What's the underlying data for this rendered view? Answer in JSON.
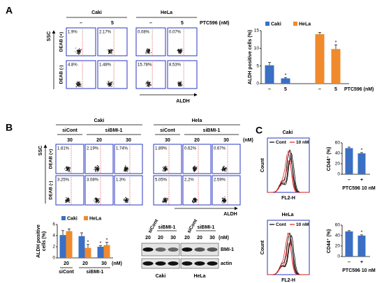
{
  "panel_a": {
    "letter": "A",
    "groups": [
      "Caki",
      "HeLa"
    ],
    "doses": [
      "–",
      "5",
      "–",
      "5"
    ],
    "treatment": "PTC596 (nM)",
    "rows": [
      "DEAB (+)",
      "DEAB (-)"
    ],
    "y_axis": "SSC",
    "x_axis": "ALDH",
    "percentages": [
      [
        "1.9%",
        "2.17%",
        "0.08%",
        "0.07%"
      ],
      [
        "4.8%",
        "1.48%",
        "15.78%",
        "8.53%"
      ]
    ],
    "bar": {
      "ylabel": "ALDH positive cells (%)",
      "series": [
        {
          "name": "Caki",
          "color": "#3a6fc4",
          "values": [
            5.2,
            1.5
          ],
          "errors": [
            0.8,
            0.2
          ]
        },
        {
          "name": "HeLa",
          "color": "#f08a2c",
          "values": [
            14,
            9.8
          ],
          "errors": [
            0.5,
            1.2
          ]
        }
      ],
      "ylim": [
        0,
        15
      ],
      "yticks": [
        0,
        5,
        10,
        15
      ],
      "x_labels": [
        "–",
        "5",
        "–",
        "5"
      ],
      "treatment": "PTC596 (nM)",
      "stars": [
        "*",
        "*"
      ]
    }
  },
  "panel_b": {
    "letter": "B",
    "groups": [
      "Caki",
      "Hela"
    ],
    "subgroups": [
      "siCont",
      "siBMI-1",
      "siCont",
      "siBMI-1"
    ],
    "doses": [
      "30",
      "20",
      "30",
      "30",
      "20",
      "30"
    ],
    "unit": "(nM)",
    "rows": [
      "DEAB (+)",
      "DEAB (-)"
    ],
    "y_axis": "SSC",
    "x_axis": "ALDH",
    "percentages": [
      [
        "1.81%",
        "2.19%",
        "1.74%",
        "1.89%",
        "0.62%",
        "0.67%"
      ],
      [
        "3.25%",
        "3.08%",
        "1.3%",
        "5.05%",
        "2.2%",
        "2.59%"
      ]
    ],
    "bar": {
      "ylabel": [
        "ALDH positive",
        "cells (%)"
      ],
      "series": [
        {
          "name": "Caki",
          "color": "#3a6fc4",
          "values": [
            4.1,
            3.9,
            2.0
          ],
          "errors": [
            0.8,
            0.6,
            0.2
          ]
        },
        {
          "name": "HeLa",
          "color": "#f08a2c",
          "values": [
            4.8,
            1.8,
            2.3
          ],
          "errors": [
            0.4,
            0.6,
            0.5
          ]
        }
      ],
      "ylim": [
        0,
        6
      ],
      "yticks": [
        0,
        2,
        4,
        6
      ],
      "x_labels": [
        "20",
        "20",
        "30"
      ],
      "unit": "(nM)",
      "groups": [
        "siCont",
        "siBMI-1"
      ],
      "stars": [
        "*",
        "*",
        "*"
      ]
    },
    "blot": {
      "lanes": [
        "siCont",
        "siBMI-1",
        "siCont",
        "siBMI-1"
      ],
      "doses": [
        "20",
        "20",
        "30",
        "20",
        "20",
        "30"
      ],
      "unit": "(nM)",
      "proteins": [
        "BMI-1",
        "actin"
      ],
      "cells": [
        "Caki",
        "HeLa"
      ]
    }
  },
  "panel_c": {
    "letter": "C",
    "plots": [
      {
        "cell": "Caki",
        "legend": [
          "Cont",
          "10 nM"
        ],
        "legend_colors": [
          "#000000",
          "#e02020"
        ],
        "y_axis": "Count",
        "x_axis": "FL2-H",
        "bar": {
          "ylabel": "CD44⁺ (%)",
          "series": [
            {
              "color": "#3a6fc4",
              "values": [
                50,
                40
              ],
              "errors": [
                2,
                1.5
              ]
            }
          ],
          "ylim": [
            0,
            60
          ],
          "yticks": [
            0,
            20,
            40,
            60
          ],
          "x_labels": [
            "–",
            "+"
          ],
          "treatment": "PTC596 10 nM",
          "stars": [
            "*"
          ]
        }
      },
      {
        "cell": "HeLa",
        "legend": [
          "Cont",
          "10 nM"
        ],
        "legend_colors": [
          "#000000",
          "#e02020"
        ],
        "y_axis": "Count",
        "x_axis": "FL2-H",
        "bar": {
          "ylabel": "CD44⁺ (%)",
          "series": [
            {
              "color": "#3a6fc4",
              "values": [
                48,
                40
              ],
              "errors": [
                1.5,
                1.5
              ]
            }
          ],
          "ylim": [
            0,
            60
          ],
          "yticks": [
            0,
            20,
            40,
            60
          ],
          "x_labels": [
            "–",
            "+"
          ],
          "treatment": "PTC596 10 nM",
          "stars": [
            "*"
          ]
        }
      }
    ]
  }
}
